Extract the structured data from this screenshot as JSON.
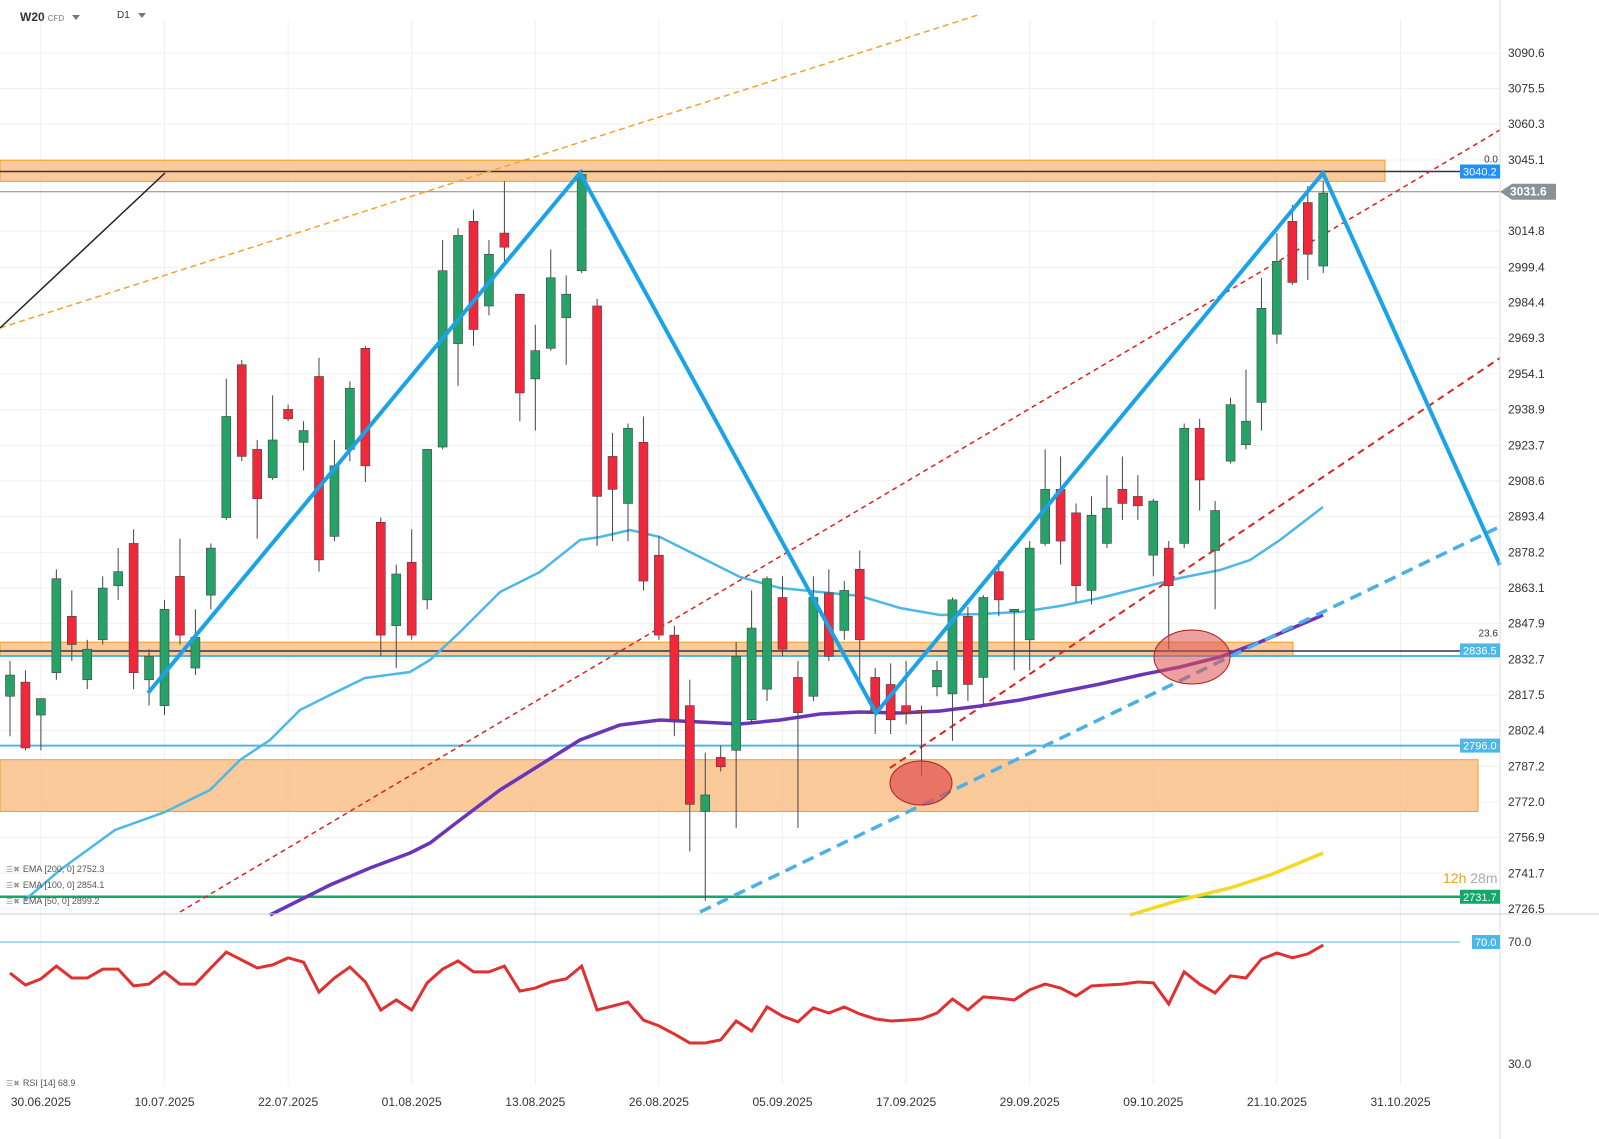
{
  "header": {
    "symbol": "W20",
    "instrument_type": "CFD",
    "timeframe": "D1"
  },
  "legend": {
    "ema200": "EMA [200, 0] 2752.3",
    "ema100": "EMA [100, 0] 2854.1",
    "ema50": "EMA [50, 0] 2899.2",
    "rsi": "RSI [14] 68.9"
  },
  "countdown": {
    "hours": "12h",
    "minutes": "28m"
  },
  "colors": {
    "up": "#26a269",
    "down": "#f0283c",
    "zone": "#f8b878",
    "zigzag": "#1aa3e8",
    "ema50": "#4cb8e8",
    "ema100": "#6a35b8",
    "ema200": "#f5d820",
    "rsi": "#e03030"
  },
  "chart_data": [
    {
      "type": "candlestick",
      "title": "W20 CFD D1",
      "ylim": [
        2726.5,
        3090.6
      ],
      "price_ticks": [
        "3090.6",
        "3075.5",
        "3060.3",
        "3045.1",
        "3014.8",
        "2999.4",
        "2984.4",
        "2969.3",
        "2954.1",
        "2938.9",
        "2923.7",
        "2908.6",
        "2893.4",
        "2878.2",
        "2863.1",
        "2847.9",
        "2832.7",
        "2817.5",
        "2802.4",
        "2787.2",
        "2772.0",
        "2756.9",
        "2741.7",
        "2726.5"
      ],
      "date_ticks": [
        "30.06.2025",
        "10.07.2025",
        "22.07.2025",
        "01.08.2025",
        "13.08.2025",
        "26.08.2025",
        "05.09.2025",
        "17.09.2025",
        "29.09.2025",
        "09.10.2025",
        "21.10.2025",
        "31.10.2025"
      ],
      "ohlc": [
        [
          2817,
          2832,
          2800,
          2826
        ],
        [
          2823,
          2828,
          2794,
          2795
        ],
        [
          2809,
          2816,
          2794,
          2816
        ],
        [
          2827,
          2871,
          2824,
          2867
        ],
        [
          2851,
          2862,
          2832,
          2839
        ],
        [
          2824,
          2841,
          2820,
          2837
        ],
        [
          2841,
          2868,
          2839,
          2863
        ],
        [
          2864,
          2880,
          2858,
          2870
        ],
        [
          2882,
          2888,
          2820,
          2827
        ],
        [
          2824,
          2837,
          2813,
          2834
        ],
        [
          2813,
          2858,
          2809,
          2854
        ],
        [
          2868,
          2884,
          2839,
          2843
        ],
        [
          2829,
          2854,
          2826,
          2842
        ],
        [
          2860,
          2882,
          2854,
          2880
        ],
        [
          2893,
          2952,
          2892,
          2936
        ],
        [
          2958,
          2960,
          2917,
          2919
        ],
        [
          2922,
          2926,
          2884,
          2901
        ],
        [
          2910,
          2945,
          2909,
          2926
        ],
        [
          2939,
          2941,
          2934,
          2935
        ],
        [
          2925,
          2934,
          2913,
          2930
        ],
        [
          2953,
          2961,
          2870,
          2875
        ],
        [
          2885,
          2926,
          2883,
          2915
        ],
        [
          2922,
          2951,
          2917,
          2948
        ],
        [
          2965,
          2966,
          2908,
          2915
        ],
        [
          2891,
          2893,
          2834,
          2843
        ],
        [
          2847,
          2873,
          2829,
          2869
        ],
        [
          2874,
          2888,
          2841,
          2843
        ],
        [
          2858,
          2922,
          2854,
          2922
        ],
        [
          2923,
          3011,
          2922,
          2998
        ],
        [
          2967,
          3016,
          2949,
          3013
        ],
        [
          3019,
          3024,
          2966,
          2973
        ],
        [
          2983,
          3011,
          2979,
          3005
        ],
        [
          3014,
          3036,
          3002,
          3008
        ],
        [
          2988,
          2988,
          2934,
          2946
        ],
        [
          2952,
          2975,
          2930,
          2964
        ],
        [
          2965,
          3007,
          2964,
          2995
        ],
        [
          2978,
          2996,
          2958,
          2988
        ],
        [
          2998,
          3041,
          2997,
          3039
        ],
        [
          2983,
          2986,
          2881,
          2902
        ],
        [
          2919,
          2929,
          2883,
          2905
        ],
        [
          2899,
          2933,
          2883,
          2931
        ],
        [
          2925,
          2936,
          2862,
          2866
        ],
        [
          2877,
          2885,
          2841,
          2843
        ],
        [
          2843,
          2847,
          2800,
          2807
        ],
        [
          2813,
          2824,
          2751,
          2771
        ],
        [
          2768,
          2793,
          2730,
          2775
        ],
        [
          2791,
          2796,
          2785,
          2787
        ],
        [
          2794,
          2840,
          2761,
          2834
        ],
        [
          2807,
          2862,
          2805,
          2846
        ],
        [
          2820,
          2868,
          2815,
          2867
        ],
        [
          2859,
          2868,
          2834,
          2837
        ],
        [
          2825,
          2832,
          2761,
          2810
        ],
        [
          2817,
          2868,
          2815,
          2859
        ],
        [
          2861,
          2871,
          2832,
          2834
        ],
        [
          2845,
          2866,
          2841,
          2862
        ],
        [
          2871,
          2879,
          2824,
          2841
        ],
        [
          2825,
          2829,
          2801,
          2810
        ],
        [
          2822,
          2831,
          2801,
          2807
        ],
        [
          2813,
          2832,
          2805,
          2810
        ],
        [
          2811,
          2813,
          2783,
          2810
        ],
        [
          2821,
          2832,
          2817,
          2828
        ],
        [
          2818,
          2859,
          2798,
          2858
        ],
        [
          2851,
          2855,
          2815,
          2822
        ],
        [
          2825,
          2860,
          2813,
          2859
        ],
        [
          2870,
          2875,
          2851,
          2858
        ],
        [
          2853,
          2854,
          2828,
          2854
        ],
        [
          2841,
          2883,
          2828,
          2880
        ],
        [
          2882,
          2922,
          2881,
          2905
        ],
        [
          2905,
          2919,
          2873,
          2883
        ],
        [
          2895,
          2899,
          2857,
          2864
        ],
        [
          2862,
          2902,
          2856,
          2894
        ],
        [
          2882,
          2911,
          2880,
          2897
        ],
        [
          2905,
          2919,
          2892,
          2899
        ],
        [
          2902,
          2911,
          2892,
          2898
        ],
        [
          2877,
          2901,
          2868,
          2900
        ],
        [
          2880,
          2883,
          2837,
          2864
        ],
        [
          2882,
          2933,
          2880,
          2931
        ],
        [
          2931,
          2935,
          2896,
          2909
        ],
        [
          2879,
          2900,
          2854,
          2896
        ],
        [
          2917,
          2944,
          2916,
          2941
        ],
        [
          2924,
          2956,
          2922,
          2934
        ],
        [
          2942,
          2995,
          2930,
          2982
        ],
        [
          2971,
          3014,
          2967,
          3002
        ],
        [
          3019,
          3026,
          2992,
          2993
        ],
        [
          3027,
          3034,
          2994,
          3005
        ],
        [
          3000,
          3036,
          2997,
          3031
        ]
      ],
      "price_badges": [
        {
          "label": "3040.2",
          "value": 3040.2,
          "color": "#1e90ff"
        },
        {
          "label": "3031.6",
          "value": 3031.6,
          "color": "#8a9299"
        },
        {
          "label": "2836.5",
          "value": 2836.5,
          "color": "#4cb8e8"
        },
        {
          "label": "2796.0",
          "value": 2796.0,
          "color": "#4cb8e8"
        },
        {
          "label": "2731.7",
          "value": 2731.7,
          "color": "#12a86a"
        }
      ],
      "fib_labels": [
        {
          "label": "0.0",
          "value": 3040.2
        },
        {
          "label": "23.6",
          "value": 2838.5
        }
      ],
      "zones": [
        [
          3036,
          3045
        ],
        [
          2834,
          2840
        ],
        [
          2768,
          2790
        ]
      ]
    },
    {
      "type": "line",
      "title": "RSI [14]",
      "ylim": [
        30,
        70
      ],
      "ticks": [
        "70.0",
        "30.0"
      ],
      "overbought_badge": "70.0",
      "values": [
        59.8,
        55.9,
        57.9,
        62.1,
        58.2,
        58.2,
        61.1,
        61.1,
        55.6,
        56.2,
        60.2,
        56.2,
        56.2,
        61.5,
        66.7,
        64.1,
        61.5,
        62.5,
        64.8,
        63.4,
        53.6,
        58.2,
        61.8,
        56.9,
        47.7,
        51.0,
        47.7,
        56.6,
        61.1,
        63.8,
        60.2,
        60.2,
        62.1,
        53.9,
        54.9,
        56.9,
        57.9,
        62.1,
        47.7,
        49.0,
        50.3,
        44.4,
        42.5,
        39.8,
        36.9,
        36.9,
        37.9,
        44.1,
        40.8,
        48.7,
        45.7,
        43.8,
        48.4,
        46.7,
        48.7,
        46.4,
        44.8,
        44.1,
        44.4,
        44.8,
        46.7,
        51.3,
        47.7,
        52.0,
        51.6,
        51.0,
        54.3,
        56.2,
        54.9,
        52.3,
        55.6,
        55.9,
        56.2,
        56.9,
        56.6,
        49.7,
        60.2,
        56.2,
        53.3,
        58.9,
        58.2,
        64.4,
        66.4,
        64.8,
        66.1,
        69.0
      ]
    }
  ]
}
